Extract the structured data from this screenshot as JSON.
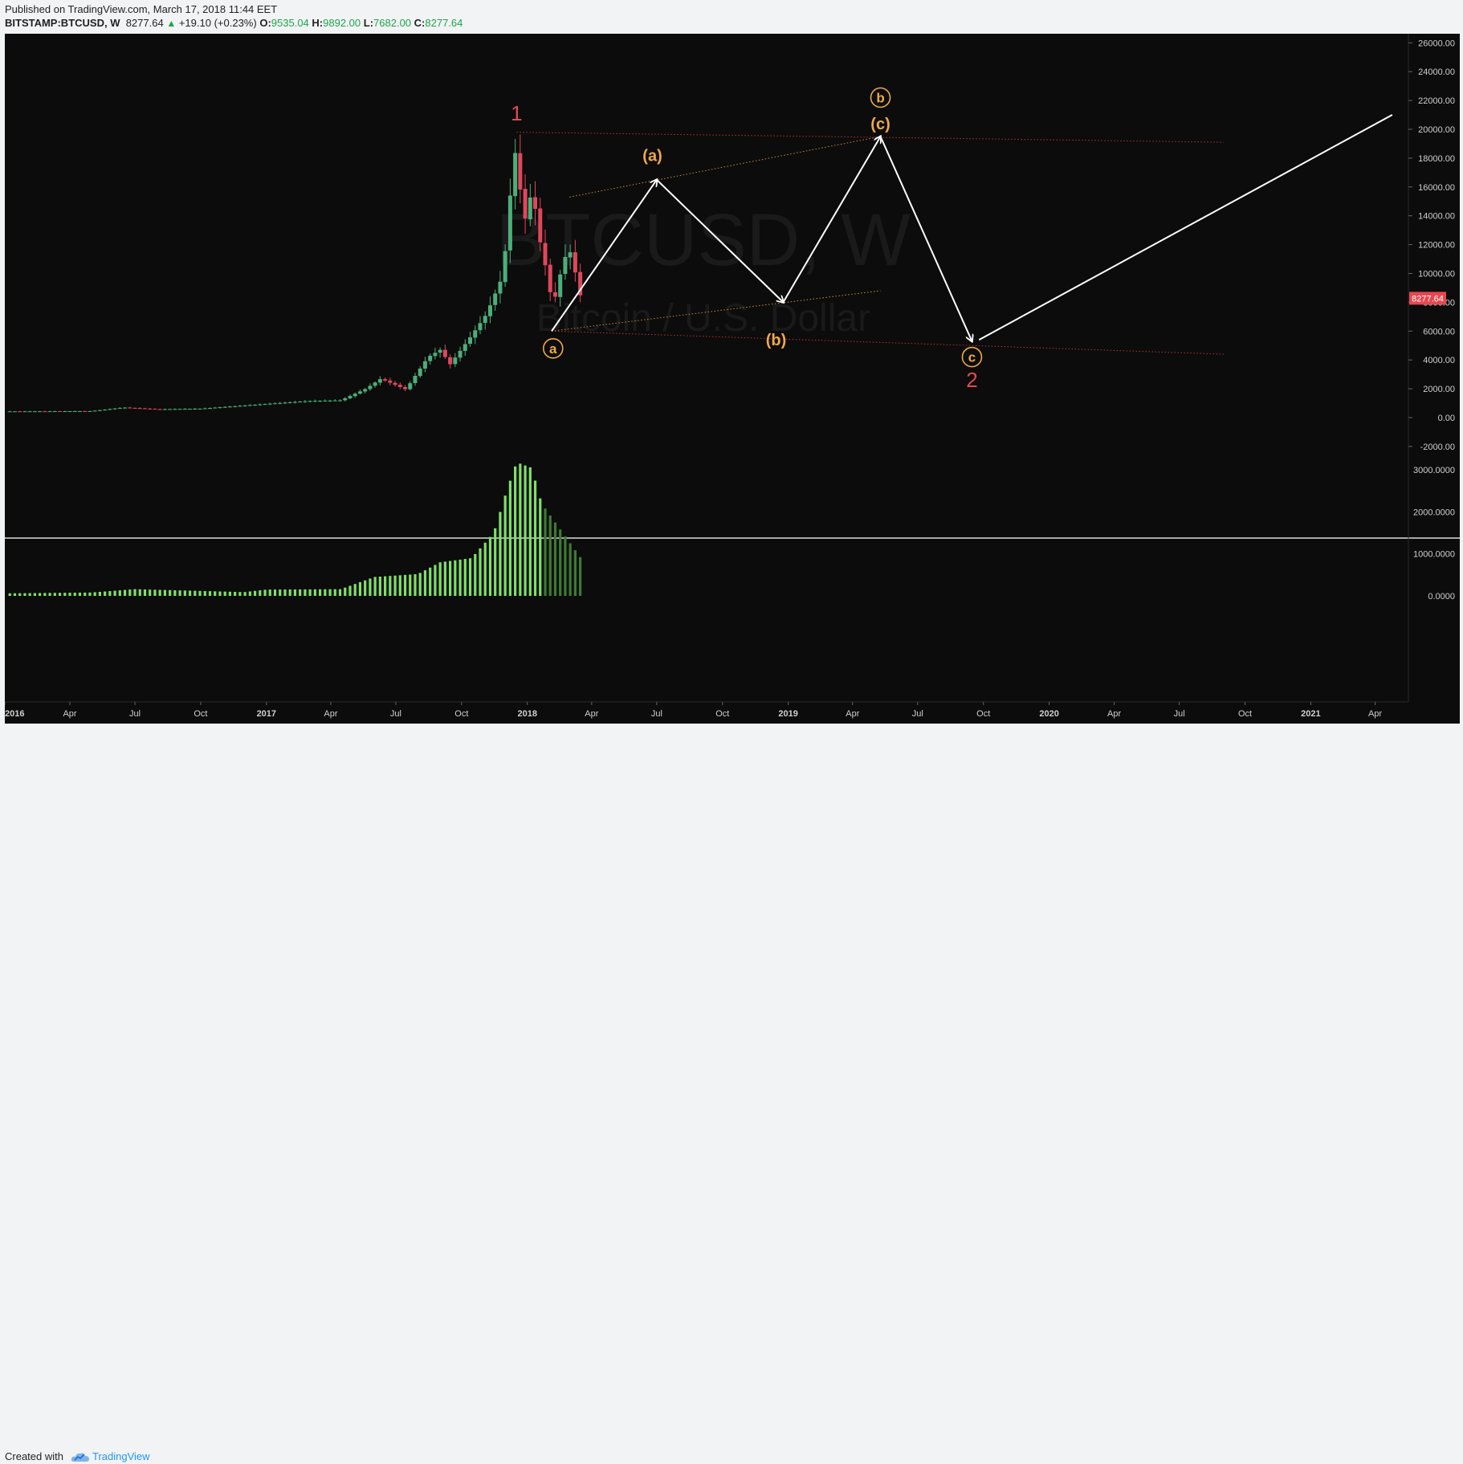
{
  "header": {
    "published": "Published on TradingView.com, March 17, 2018 11:44 EET",
    "symbol": "BITSTAMP:BTCUSD, W",
    "last": "8277.64",
    "change": "+19.10 (+0.23%)",
    "o_label": "O:",
    "o_value": "9535.04",
    "h_label": "H:",
    "h_value": "9892.00",
    "l_label": "L:",
    "l_value": "7682.00",
    "c_label": "C:",
    "c_value": "8277.64"
  },
  "watermark": {
    "symbol": "BTCUSD, W",
    "description": "Bitcoin / U.S. Dollar"
  },
  "footer": {
    "created_with": "Created with",
    "brand": "TradingView"
  },
  "colors": {
    "background": "#0c0c0c",
    "up": "#4caf7a",
    "down": "#e0475b",
    "volume_up": "#7ee068",
    "volume_down": "#3e7a34",
    "wave_orange": "#f0a848",
    "wave_red": "#e6484f",
    "path": "#ffffff",
    "last_price_tag": "#e6484f"
  },
  "chart_data": {
    "type": "candlestick",
    "interval": "weekly",
    "price_axis": {
      "ticks": [
        "26000.00",
        "24000.00",
        "22000.00",
        "20000.00",
        "18000.00",
        "16000.00",
        "14000.00",
        "12000.00",
        "10000.00",
        "8000.00",
        "6000.00",
        "4000.00",
        "2000.00",
        "0.00",
        "-2000.00"
      ],
      "last_price": "8277.64"
    },
    "volume_axis": {
      "ticks": [
        "3000.0000",
        "2000.0000",
        "1000.0000",
        "0.0000"
      ]
    },
    "time_axis": {
      "labels": [
        {
          "t": "2016-01-01",
          "label": "2016",
          "bold": true
        },
        {
          "t": "2016-04-01",
          "label": "Apr",
          "bold": false
        },
        {
          "t": "2016-07-01",
          "label": "Jul",
          "bold": false
        },
        {
          "t": "2016-10-01",
          "label": "Oct",
          "bold": false
        },
        {
          "t": "2017-01-01",
          "label": "2017",
          "bold": true
        },
        {
          "t": "2017-04-01",
          "label": "Apr",
          "bold": false
        },
        {
          "t": "2017-07-01",
          "label": "Jul",
          "bold": false
        },
        {
          "t": "2017-10-01",
          "label": "Oct",
          "bold": false
        },
        {
          "t": "2018-01-01",
          "label": "2018",
          "bold": true
        },
        {
          "t": "2018-04-01",
          "label": "Apr",
          "bold": false
        },
        {
          "t": "2018-07-01",
          "label": "Jul",
          "bold": false
        },
        {
          "t": "2018-10-01",
          "label": "Oct",
          "bold": false
        },
        {
          "t": "2019-01-01",
          "label": "2019",
          "bold": true
        },
        {
          "t": "2019-04-01",
          "label": "Apr",
          "bold": false
        },
        {
          "t": "2019-07-01",
          "label": "Jul",
          "bold": false
        },
        {
          "t": "2019-10-01",
          "label": "Oct",
          "bold": false
        },
        {
          "t": "2020-01-01",
          "label": "2020",
          "bold": true
        },
        {
          "t": "2020-04-01",
          "label": "Apr",
          "bold": false
        },
        {
          "t": "2020-07-01",
          "label": "Jul",
          "bold": false
        },
        {
          "t": "2020-10-01",
          "label": "Oct",
          "bold": false
        },
        {
          "t": "2021-01-01",
          "label": "2021",
          "bold": true
        },
        {
          "t": "2021-04-01",
          "label": "Apr",
          "bold": false
        }
      ]
    },
    "price_anchors": [
      [
        "2016-01-01",
        430
      ],
      [
        "2016-05-01",
        450
      ],
      [
        "2016-06-15",
        700
      ],
      [
        "2016-08-01",
        580
      ],
      [
        "2016-10-01",
        620
      ],
      [
        "2017-01-01",
        950
      ],
      [
        "2017-03-01",
        1150
      ],
      [
        "2017-04-15",
        1200
      ],
      [
        "2017-05-20",
        2000
      ],
      [
        "2017-06-10",
        2700
      ],
      [
        "2017-07-15",
        1950
      ],
      [
        "2017-08-15",
        4200
      ],
      [
        "2017-09-01",
        4700
      ],
      [
        "2017-09-15",
        3700
      ],
      [
        "2017-10-15",
        5700
      ],
      [
        "2017-11-05",
        7200
      ],
      [
        "2017-11-28",
        9900
      ],
      [
        "2017-12-10",
        16500
      ],
      [
        "2017-12-17",
        19100
      ],
      [
        "2017-12-24",
        14500
      ],
      [
        "2018-01-01",
        13400
      ],
      [
        "2018-01-07",
        16200
      ],
      [
        "2018-01-14",
        13800
      ],
      [
        "2018-01-21",
        11500
      ],
      [
        "2018-01-28",
        10200
      ],
      [
        "2018-02-04",
        8100
      ],
      [
        "2018-02-11",
        8500
      ],
      [
        "2018-02-18",
        10500
      ],
      [
        "2018-02-25",
        11400
      ],
      [
        "2018-03-04",
        11500
      ],
      [
        "2018-03-11",
        9500
      ],
      [
        "2018-03-17",
        8277.64
      ]
    ],
    "volume_anchors": [
      [
        "2016-01-01",
        60
      ],
      [
        "2016-05-01",
        80
      ],
      [
        "2016-07-01",
        160
      ],
      [
        "2016-12-01",
        90
      ],
      [
        "2017-01-01",
        150
      ],
      [
        "2017-04-15",
        160
      ],
      [
        "2017-06-01",
        450
      ],
      [
        "2017-08-01",
        520
      ],
      [
        "2017-09-01",
        800
      ],
      [
        "2017-10-15",
        900
      ],
      [
        "2017-11-15",
        1500
      ],
      [
        "2017-12-03",
        2500
      ],
      [
        "2017-12-17",
        3180
      ],
      [
        "2018-01-07",
        3050
      ],
      [
        "2018-01-21",
        2200
      ],
      [
        "2018-02-11",
        1700
      ],
      [
        "2018-03-17",
        900
      ]
    ],
    "wave_path": [
      [
        "2018-02-04",
        6000
      ],
      [
        "2018-07-01",
        16500
      ],
      [
        "2018-12-25",
        8000
      ],
      [
        "2019-05-10",
        19500
      ],
      [
        "2019-09-15",
        5300
      ]
    ],
    "projection": [
      [
        "2019-09-25",
        5400
      ],
      [
        "2021-04-25",
        21000
      ]
    ],
    "trend_lines": [
      {
        "kind": "red-dotted",
        "points": [
          [
            "2017-12-17",
            19800
          ],
          [
            "2020-09-01",
            19100
          ]
        ]
      },
      {
        "kind": "red-dotted",
        "points": [
          [
            "2018-02-04",
            6000
          ],
          [
            "2020-09-01",
            4400
          ]
        ]
      },
      {
        "kind": "orange-dotted",
        "points": [
          [
            "2018-03-01",
            15300
          ],
          [
            "2019-05-10",
            19500
          ]
        ]
      },
      {
        "kind": "orange-dotted",
        "points": [
          [
            "2018-02-04",
            6000
          ],
          [
            "2019-05-10",
            8800
          ]
        ]
      }
    ],
    "wave_labels": [
      {
        "text": "1",
        "t": "2017-12-17",
        "p": 21000,
        "color": "red",
        "circled": false
      },
      {
        "text": "a",
        "t": "2018-02-06",
        "p": 4800,
        "color": "orange",
        "circled": true
      },
      {
        "text": "(a)",
        "t": "2018-06-25",
        "p": 18200,
        "color": "orange",
        "circled": false
      },
      {
        "text": "(b)",
        "t": "2018-12-15",
        "p": 5400,
        "color": "orange",
        "circled": false
      },
      {
        "text": "(c)",
        "t": "2019-05-10",
        "p": 20400,
        "color": "orange",
        "circled": false
      },
      {
        "text": "b",
        "t": "2019-05-10",
        "p": 22200,
        "color": "orange",
        "circled": true
      },
      {
        "text": "c",
        "t": "2019-09-15",
        "p": 4200,
        "color": "orange",
        "circled": true
      },
      {
        "text": "2",
        "t": "2019-09-15",
        "p": 2500,
        "color": "red",
        "circled": false
      }
    ]
  }
}
